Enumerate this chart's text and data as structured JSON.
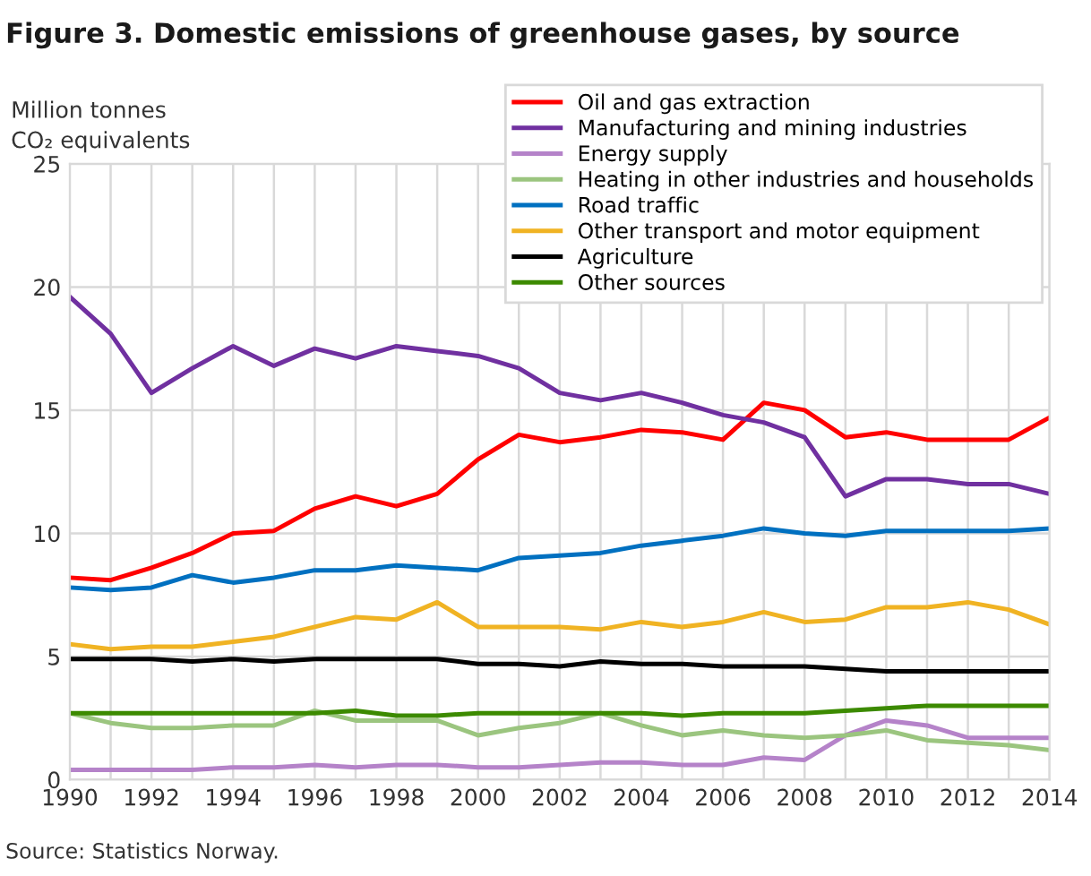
{
  "chart_data": {
    "type": "line",
    "title": "Figure 3. Domestic emissions of greenhouse gases, by source",
    "ylabel": "Million tonnes\nCO₂ equivalents",
    "annotations": [
      "Source: Statistics Norway."
    ],
    "x": [
      1990,
      1991,
      1992,
      1993,
      1994,
      1995,
      1996,
      1997,
      1998,
      1999,
      2000,
      2001,
      2002,
      2003,
      2004,
      2005,
      2006,
      2007,
      2008,
      2009,
      2010,
      2011,
      2012,
      2013,
      2014
    ],
    "xlim": [
      1990,
      2014
    ],
    "xticks": [
      1990,
      {
        "value": 1991,
        "label": null
      },
      1992,
      {
        "value": 1993,
        "label": null
      },
      1994,
      {
        "value": 1995,
        "label": null
      },
      1996,
      {
        "value": 1997,
        "label": null
      },
      1998,
      {
        "value": 1999,
        "label": null
      },
      2000,
      {
        "value": 2001,
        "label": null
      },
      2002,
      {
        "value": 2003,
        "label": null
      },
      2004,
      {
        "value": 2005,
        "label": null
      },
      2006,
      {
        "value": 2007,
        "label": null
      },
      2008,
      {
        "value": 2009,
        "label": null
      },
      2010,
      {
        "value": 2011,
        "label": null
      },
      2012,
      {
        "value": 2013,
        "label": null
      },
      2014
    ],
    "ylim": [
      0,
      25
    ],
    "yticks": [
      0,
      5,
      10,
      15,
      20,
      25
    ],
    "grid": true,
    "legend": "top right",
    "marker": "none",
    "line_style": "solid",
    "series": [
      {
        "name": "Oil and gas extraction",
        "color": "#ff0000",
        "values": [
          8.2,
          8.1,
          8.6,
          9.2,
          10.0,
          10.1,
          11.0,
          11.5,
          11.1,
          11.6,
          13.0,
          14.0,
          13.7,
          13.9,
          14.2,
          14.1,
          13.8,
          15.3,
          15.0,
          13.9,
          14.1,
          13.8,
          13.8,
          13.8,
          14.7
        ]
      },
      {
        "name": "Manufacturing and mining industries",
        "color": "#7030a0",
        "values": [
          19.6,
          18.1,
          15.7,
          16.7,
          17.6,
          16.8,
          17.5,
          17.1,
          17.6,
          17.4,
          17.2,
          16.7,
          15.7,
          15.4,
          15.7,
          15.3,
          14.8,
          14.5,
          13.9,
          11.5,
          12.2,
          12.2,
          12.0,
          12.0,
          11.6
        ]
      },
      {
        "name": "Energy supply",
        "color": "#b583c9",
        "values": [
          0.4,
          0.4,
          0.4,
          0.4,
          0.5,
          0.5,
          0.6,
          0.5,
          0.6,
          0.6,
          0.5,
          0.5,
          0.6,
          0.7,
          0.7,
          0.6,
          0.6,
          0.9,
          0.8,
          1.8,
          2.4,
          2.2,
          1.7,
          1.7,
          1.7
        ]
      },
      {
        "name": "Heating in other industries and households",
        "color": "#9bc57f",
        "values": [
          2.7,
          2.3,
          2.1,
          2.1,
          2.2,
          2.2,
          2.8,
          2.4,
          2.4,
          2.4,
          1.8,
          2.1,
          2.3,
          2.7,
          2.2,
          1.8,
          2.0,
          1.8,
          1.7,
          1.8,
          2.0,
          1.6,
          1.5,
          1.4,
          1.2
        ]
      },
      {
        "name": "Road traffic",
        "color": "#0070c0",
        "values": [
          7.8,
          7.7,
          7.8,
          8.3,
          8.0,
          8.2,
          8.5,
          8.5,
          8.7,
          8.6,
          8.5,
          9.0,
          9.1,
          9.2,
          9.5,
          9.7,
          9.9,
          10.2,
          10.0,
          9.9,
          10.1,
          10.1,
          10.1,
          10.1,
          10.2
        ]
      },
      {
        "name": "Other transport and motor equipment",
        "color": "#f0b323",
        "values": [
          5.5,
          5.3,
          5.4,
          5.4,
          5.6,
          5.8,
          6.2,
          6.6,
          6.5,
          7.2,
          6.2,
          6.2,
          6.2,
          6.1,
          6.4,
          6.2,
          6.4,
          6.8,
          6.4,
          6.5,
          7.0,
          7.0,
          7.2,
          6.9,
          6.3
        ]
      },
      {
        "name": "Agriculture",
        "color": "#000000",
        "values": [
          4.9,
          4.9,
          4.9,
          4.8,
          4.9,
          4.8,
          4.9,
          4.9,
          4.9,
          4.9,
          4.7,
          4.7,
          4.6,
          4.8,
          4.7,
          4.7,
          4.6,
          4.6,
          4.6,
          4.5,
          4.4,
          4.4,
          4.4,
          4.4,
          4.4
        ]
      },
      {
        "name": "Other sources",
        "color": "#3c8a00",
        "values": [
          2.7,
          2.7,
          2.7,
          2.7,
          2.7,
          2.7,
          2.7,
          2.8,
          2.6,
          2.6,
          2.7,
          2.7,
          2.7,
          2.7,
          2.7,
          2.6,
          2.7,
          2.7,
          2.7,
          2.8,
          2.9,
          3.0,
          3.0,
          3.0,
          3.0
        ]
      }
    ]
  }
}
